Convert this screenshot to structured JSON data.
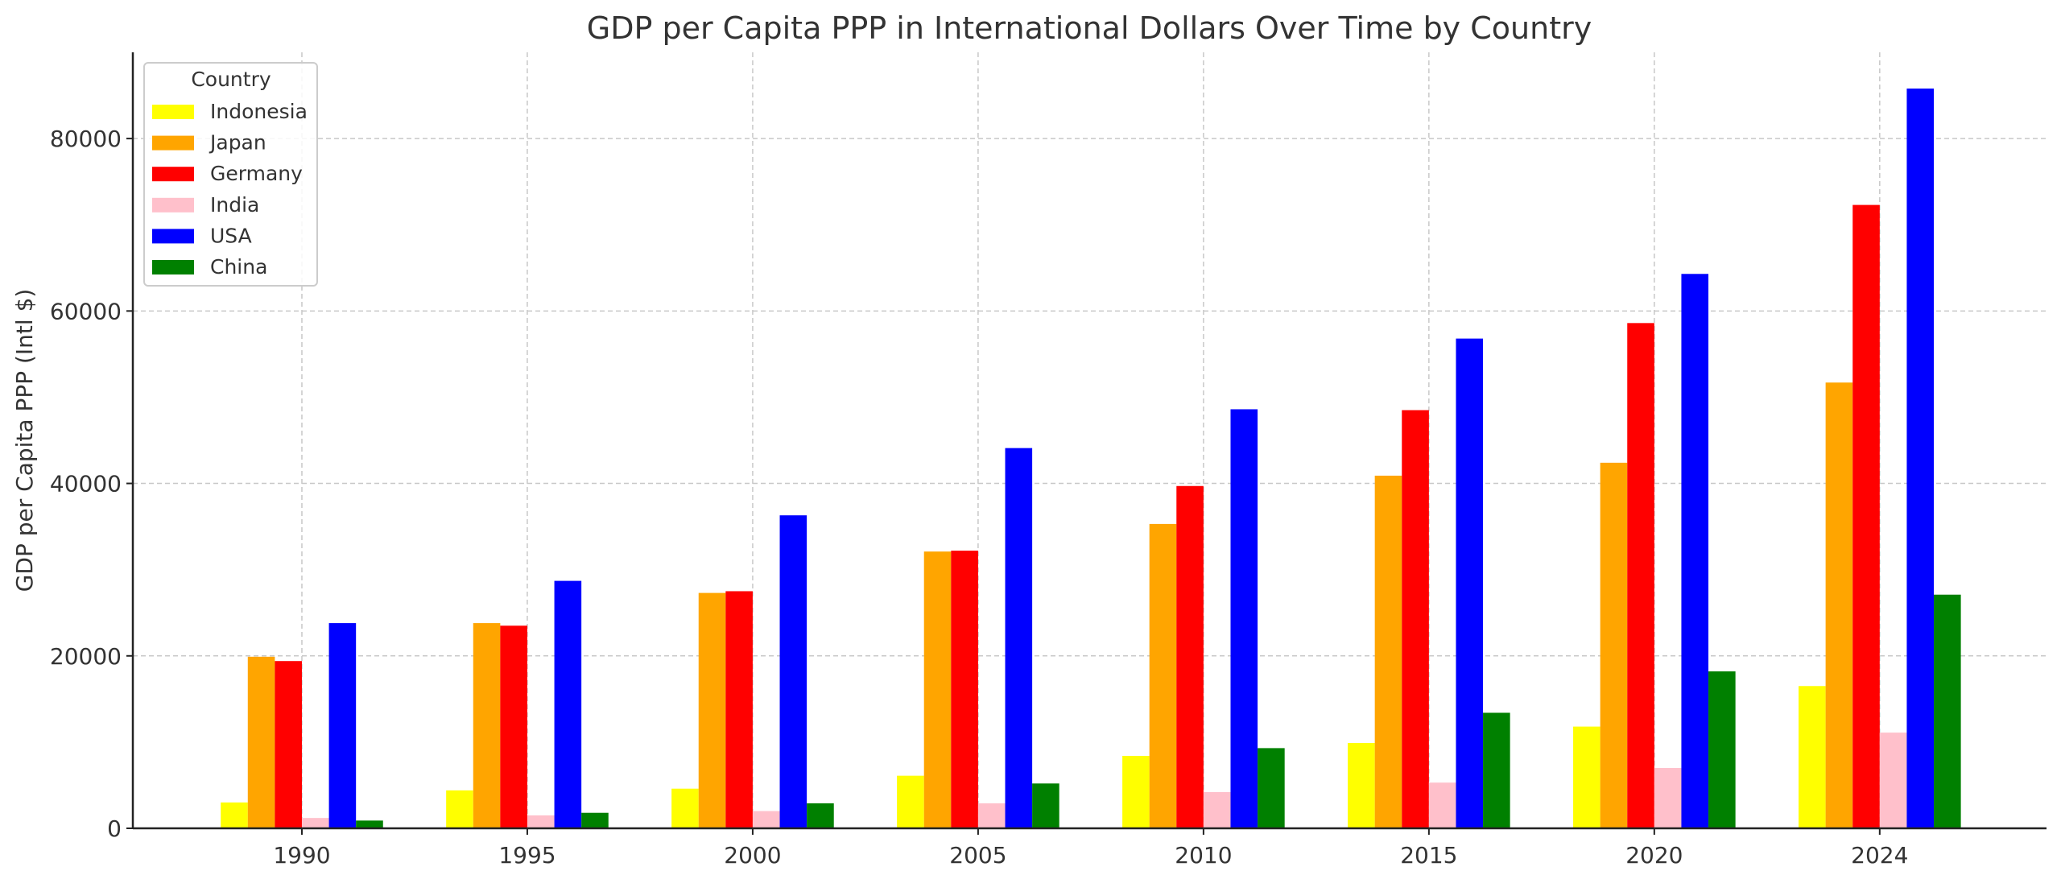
{
  "chart_data": {
    "type": "bar",
    "title": "GDP per Capita PPP in International Dollars Over Time by Country",
    "xlabel": "",
    "ylabel": "GDP per Capita PPP (Intl $)",
    "ylim": [
      0,
      90000
    ],
    "yticks": [
      0,
      20000,
      40000,
      60000,
      80000
    ],
    "grid": true,
    "legend": {
      "title": "Country",
      "placement": "top-left"
    },
    "categories": [
      "1990",
      "1995",
      "2000",
      "2005",
      "2010",
      "2015",
      "2020",
      "2024"
    ],
    "series": [
      {
        "name": "Indonesia",
        "color": "#ffff00",
        "values": [
          3000,
          4400,
          4600,
          6100,
          8400,
          9900,
          11800,
          16500
        ]
      },
      {
        "name": "Japan",
        "color": "#ffa500",
        "values": [
          19900,
          23800,
          27300,
          32100,
          35300,
          40900,
          42400,
          51700
        ]
      },
      {
        "name": "Germany",
        "color": "#ff0000",
        "values": [
          19400,
          23500,
          27500,
          32200,
          39700,
          48500,
          58600,
          72300
        ]
      },
      {
        "name": "India",
        "color": "#ffc0cb",
        "values": [
          1200,
          1500,
          2000,
          2900,
          4200,
          5300,
          7000,
          11100
        ]
      },
      {
        "name": "USA",
        "color": "#0000ff",
        "values": [
          23800,
          28700,
          36300,
          44100,
          48600,
          56800,
          64300,
          85800
        ]
      },
      {
        "name": "China",
        "color": "#008000",
        "values": [
          900,
          1800,
          2900,
          5200,
          9300,
          13400,
          18200,
          27100
        ]
      }
    ]
  }
}
